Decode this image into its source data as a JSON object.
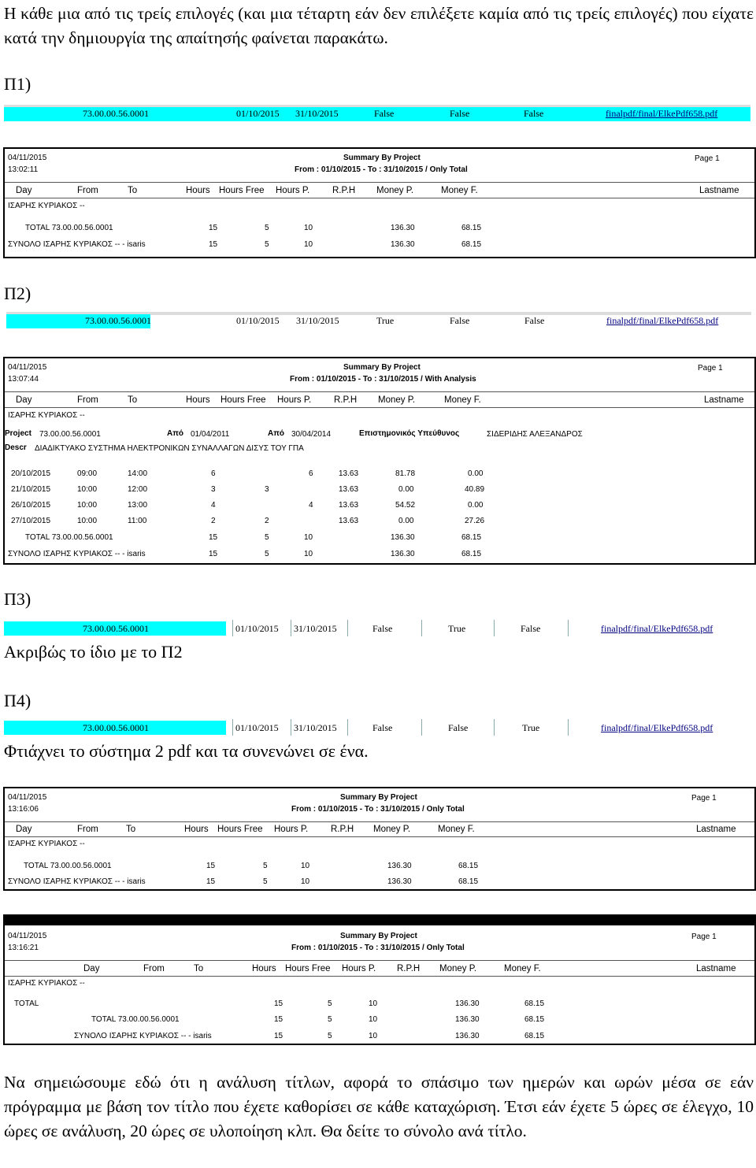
{
  "intro": "Η κάθε μια από τις τρείς επιλογές (και μια τέταρτη εάν δεν επιλέξετε καμία από τις τρείς επιλογές) που είχατε κατά την δημιουργία της απαίτησής φαίνεται παρακάτω.",
  "p1": {
    "label": "Π1)",
    "strip": {
      "code": "73.00.00.56.0001",
      "from": "01/10/2015",
      "to": "31/10/2015",
      "c1": "False",
      "c2": "False",
      "c3": "False",
      "link": "finalpdf/final/ElkePdf658.pdf"
    },
    "report": {
      "date": "04/11/2015",
      "time": "13:02:11",
      "title": "Summary By Project",
      "subtitle": "From : 01/10/2015 - To : 31/10/2015  /  Only Total",
      "page": "Page 1",
      "headers": [
        "Day",
        "From",
        "To",
        "Hours",
        "Hours Free",
        "Hours P.",
        "R.P.H",
        "Money P.",
        "Money F.",
        "Lastname"
      ],
      "person": "ΙΣΑΡΗΣ ΚΥΡΙΑΚΟΣ --",
      "total_label": "TOTAL  73.00.00.56.0001",
      "total": [
        "15",
        "5",
        "10",
        "136.30",
        "68.15"
      ],
      "sum_label": "ΣΥΝΟΛΟ  ΙΣΑΡΗΣ ΚΥΡΙΑΚΟΣ -- - isaris",
      "sum": [
        "15",
        "5",
        "10",
        "136.30",
        "68.15"
      ]
    }
  },
  "p2": {
    "label": "Π2)",
    "strip": {
      "code": "73.00.00.56.0001",
      "from": "01/10/2015",
      "to": "31/10/2015",
      "c1": "True",
      "c2": "False",
      "c3": "False",
      "link": "finalpdf/final/ElkePdf658.pdf"
    },
    "report": {
      "date": "04/11/2015",
      "time": "13:07:44",
      "title": "Summary By Project",
      "subtitle": "From : 01/10/2015 - To : 31/10/2015  /  With Analysis",
      "page": "Page 1",
      "headers": [
        "Day",
        "From",
        "To",
        "Hours",
        "Hours Free",
        "Hours P.",
        "R.P.H",
        "Money P.",
        "Money F.",
        "Lastname"
      ],
      "person": "ΙΣΑΡΗΣ ΚΥΡΙΑΚΟΣ --",
      "project_label": "Project",
      "project_code": "73.00.00.56.0001",
      "apo1_label": "Από",
      "apo1": "01/04/2011",
      "apo2_label": "Από",
      "apo2": "30/04/2014",
      "resp_label": "Επιστημονικός Υπεύθυνος",
      "resp": "ΣΙΔΕΡΙΔΗΣ ΑΛΕΞΑΝΔΡΟΣ",
      "descr_label": "Descr",
      "descr": "ΔΙΑΔΙΚΤΥΑΚΟ ΣΥΣΤΗΜΑ ΗΛΕΚΤΡΟΝΙΚΩΝ ΣΥΝΑΛΛΑΓΩΝ ΔΙΣΥΣ ΤΟΥ ΓΠΑ",
      "rows": [
        {
          "day": "20/10/2015",
          "from": "09:00",
          "to": "14:00",
          "hours": "6",
          "free": "",
          "hp": "6",
          "rph": "13.63",
          "mp": "81.78",
          "mf": "0.00"
        },
        {
          "day": "21/10/2015",
          "from": "10:00",
          "to": "12:00",
          "hours": "3",
          "free": "3",
          "hp": "",
          "rph": "13.63",
          "mp": "0.00",
          "mf": "40.89"
        },
        {
          "day": "26/10/2015",
          "from": "10:00",
          "to": "13:00",
          "hours": "4",
          "free": "",
          "hp": "4",
          "rph": "13.63",
          "mp": "54.52",
          "mf": "0.00"
        },
        {
          "day": "27/10/2015",
          "from": "10:00",
          "to": "11:00",
          "hours": "2",
          "free": "2",
          "hp": "",
          "rph": "13.63",
          "mp": "0.00",
          "mf": "27.26"
        }
      ],
      "total_label": "TOTAL  73.00.00.56.0001",
      "total": [
        "15",
        "5",
        "10",
        "136.30",
        "68.15"
      ],
      "sum_label": "ΣΥΝΟΛΟ  ΙΣΑΡΗΣ ΚΥΡΙΑΚΟΣ -- - isaris",
      "sum": [
        "15",
        "5",
        "10",
        "136.30",
        "68.15"
      ]
    }
  },
  "p3": {
    "label": "Π3)",
    "strip": {
      "code": "73.00.00.56.0001",
      "from": "01/10/2015",
      "to": "31/10/2015",
      "c1": "False",
      "c2": "True",
      "c3": "False",
      "link": "finalpdf/final/ElkePdf658.pdf"
    },
    "note": "Ακριβώς το ίδιο με το Π2"
  },
  "p4": {
    "label": "Π4)",
    "strip": {
      "code": "73.00.00.56.0001",
      "from": "01/10/2015",
      "to": "31/10/2015",
      "c1": "False",
      "c2": "False",
      "c3": "True",
      "link": "finalpdf/final/ElkePdf658.pdf"
    },
    "note": "Φτιάχνει το σύστημα 2 pdf και τα συνενώνει σε ένα.",
    "report1": {
      "date": "04/11/2015",
      "time": "13:16:06",
      "title": "Summary By Project",
      "subtitle": "From : 01/10/2015 - To : 31/10/2015  /  Only Total",
      "page": "Page 1",
      "headers": [
        "Day",
        "From",
        "To",
        "Hours",
        "Hours Free",
        "Hours P.",
        "R.P.H",
        "Money P.",
        "Money F.",
        "Lastname"
      ],
      "person": "ΙΣΑΡΗΣ ΚΥΡΙΑΚΟΣ --",
      "total_label": "TOTAL  73.00.00.56.0001",
      "total": [
        "15",
        "5",
        "10",
        "136.30",
        "68.15"
      ],
      "sum_label": "ΣΥΝΟΛΟ  ΙΣΑΡΗΣ ΚΥΡΙΑΚΟΣ -- - isaris",
      "sum": [
        "15",
        "5",
        "10",
        "136.30",
        "68.15"
      ]
    },
    "report2": {
      "date": "04/11/2015",
      "time": "13:16:21",
      "title": "Summary By Project",
      "subtitle": "From : 01/10/2015 - To : 31/10/2015  /  Only Total",
      "page": "Page 1",
      "headers": [
        "Day",
        "From",
        "To",
        "Hours",
        "Hours Free",
        "Hours P.",
        "R.P.H",
        "Money P.",
        "Money F.",
        "Lastname"
      ],
      "person": "ΙΣΑΡΗΣ ΚΥΡΙΑΚΟΣ --",
      "grand_label": "TOTAL",
      "grand": [
        "15",
        "5",
        "10",
        "136.30",
        "68.15"
      ],
      "total_label": "TOTAL  73.00.00.56.0001",
      "total": [
        "15",
        "5",
        "10",
        "136.30",
        "68.15"
      ],
      "sum_label": "ΣΥΝΟΛΟ  ΙΣΑΡΗΣ ΚΥΡΙΑΚΟΣ -- - isaris",
      "sum": [
        "15",
        "5",
        "10",
        "136.30",
        "68.15"
      ]
    }
  },
  "closing": "Να σημειώσουμε εδώ ότι η ανάλυση τίτλων, αφορά το σπάσιμο των ημερών και ωρών μέσα σε εάν πρόγραμμα με βάση τον τίτλο που έχετε καθορίσει σε κάθε καταχώριση. Έτσι εάν έχετε 5 ώρες σε έλεγχο, 10 ώρες σε ανάλυση, 20 ώρες σε υλοποίηση κλπ. Θα δείτε το σύνολο ανά τίτλο."
}
